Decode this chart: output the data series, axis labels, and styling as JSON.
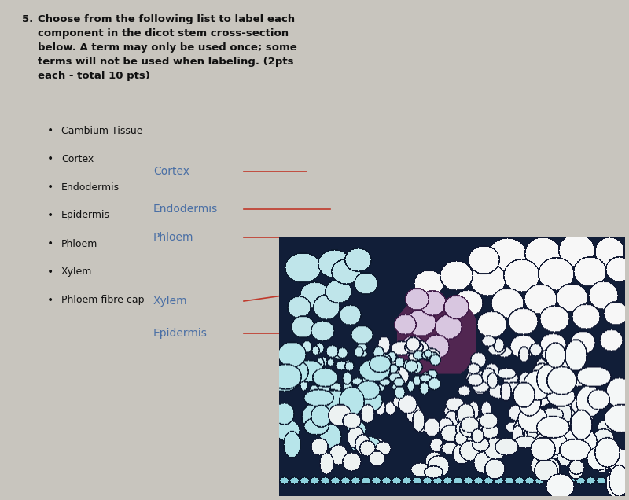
{
  "background_color": "#c8c5be",
  "title_number": "5.",
  "title_text": "Choose from the following list to label each\ncomponent in the dicot stem cross-section\nbelow. A term may only be used once; some\nterms will not be used when labeling. (2pts\neach - total 10 pts)",
  "bullet_items": [
    "Cambium Tissue",
    "Cortex",
    "Endodermis",
    "Epidermis",
    "Phloem",
    "Xylem",
    "Phloem fibre cap"
  ],
  "labels": [
    "Cortex",
    "Endodermis",
    "Phloem",
    "Xylem",
    "Epidermis"
  ],
  "label_color": "#4a6fa5",
  "line_color": "#c0392b",
  "title_fontsize": 9.5,
  "bullet_fontsize": 9,
  "label_fontsize": 10
}
